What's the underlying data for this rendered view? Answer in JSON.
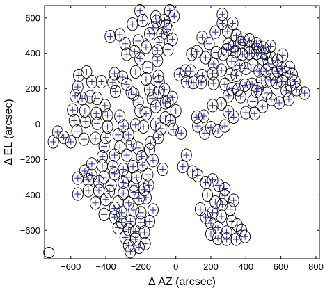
{
  "chart_data": {
    "type": "scatter",
    "title": "",
    "xlabel": "Δ AZ (arcsec)",
    "ylabel": "Δ EL (arcsec)",
    "xlim": [
      -750,
      820
    ],
    "ylim": [
      -760,
      670
    ],
    "xticks": [
      -600,
      -400,
      -200,
      0,
      200,
      400,
      600,
      800
    ],
    "yticks": [
      -600,
      -400,
      -200,
      0,
      200,
      400,
      600
    ],
    "xtick_labels": [
      "−600",
      "−400",
      "−200",
      "0",
      "200",
      "400",
      "600",
      "800"
    ],
    "ytick_labels": [
      "−600",
      "−400",
      "−200",
      "0",
      "200",
      "400",
      "600"
    ],
    "grid": false,
    "beam_diameter": 60,
    "beam_reference": [
      -725,
      -725
    ],
    "marker": "plus",
    "colors": {
      "marker": "#2222cc",
      "outline": "#000000",
      "axes": "#000000",
      "background": "#ffffff"
    },
    "points": [
      [
        -205,
        640
      ],
      [
        -115,
        605
      ],
      [
        -35,
        640
      ],
      [
        -375,
        495
      ],
      [
        -320,
        505
      ],
      [
        -248,
        565
      ],
      [
        -190,
        585
      ],
      [
        -110,
        580
      ],
      [
        -130,
        545
      ],
      [
        -65,
        585
      ],
      [
        -10,
        610
      ],
      [
        -55,
        555
      ],
      [
        -290,
        455
      ],
      [
        -215,
        470
      ],
      [
        -150,
        510
      ],
      [
        -80,
        510
      ],
      [
        -45,
        535
      ],
      [
        -235,
        410
      ],
      [
        -170,
        435
      ],
      [
        -95,
        460
      ],
      [
        -20,
        480
      ],
      [
        -350,
        285
      ],
      [
        -280,
        395
      ],
      [
        -205,
        370
      ],
      [
        -105,
        415
      ],
      [
        -45,
        420
      ],
      [
        -510,
        295
      ],
      [
        -555,
        275
      ],
      [
        -425,
        240
      ],
      [
        -480,
        240
      ],
      [
        -560,
        210
      ],
      [
        -360,
        235
      ],
      [
        -305,
        265
      ],
      [
        -230,
        295
      ],
      [
        -160,
        320
      ],
      [
        -105,
        360
      ],
      [
        -280,
        225
      ],
      [
        -240,
        170
      ],
      [
        -170,
        255
      ],
      [
        -100,
        270
      ],
      [
        -575,
        160
      ],
      [
        -535,
        145
      ],
      [
        -490,
        155
      ],
      [
        -450,
        145
      ],
      [
        -405,
        105
      ],
      [
        -345,
        185
      ],
      [
        -255,
        180
      ],
      [
        -215,
        125
      ],
      [
        -150,
        195
      ],
      [
        -95,
        240
      ],
      [
        -590,
        80
      ],
      [
        -520,
        75
      ],
      [
        -455,
        60
      ],
      [
        -390,
        50
      ],
      [
        -320,
        45
      ],
      [
        -205,
        75
      ],
      [
        -135,
        145
      ],
      [
        -65,
        195
      ],
      [
        -580,
        20
      ],
      [
        -515,
        15
      ],
      [
        -450,
        5
      ],
      [
        -390,
        -15
      ],
      [
        -300,
        -10
      ],
      [
        -230,
        -5
      ],
      [
        -170,
        60
      ],
      [
        -115,
        100
      ],
      [
        -45,
        130
      ],
      [
        -675,
        -45
      ],
      [
        -640,
        -75
      ],
      [
        -600,
        -100
      ],
      [
        -525,
        -85
      ],
      [
        -460,
        -80
      ],
      [
        -400,
        -75
      ],
      [
        -330,
        -60
      ],
      [
        -270,
        -60
      ],
      [
        -185,
        -15
      ],
      [
        -115,
        0
      ],
      [
        -60,
        35
      ],
      [
        -700,
        -100
      ],
      [
        -565,
        -40
      ],
      [
        -410,
        -125
      ],
      [
        -320,
        -130
      ],
      [
        -255,
        -115
      ],
      [
        -215,
        -135
      ],
      [
        -145,
        -105
      ],
      [
        -85,
        -25
      ],
      [
        -30,
        20
      ],
      [
        -15,
        -30
      ],
      [
        30,
        -50
      ],
      [
        0,
        75
      ],
      [
        -420,
        -185
      ],
      [
        -350,
        -175
      ],
      [
        -280,
        -175
      ],
      [
        -195,
        -185
      ],
      [
        -150,
        -145
      ],
      [
        -100,
        -75
      ],
      [
        -480,
        -225
      ],
      [
        -420,
        -235
      ],
      [
        -360,
        -240
      ],
      [
        -300,
        -255
      ],
      [
        -245,
        -240
      ],
      [
        -190,
        -230
      ],
      [
        -130,
        -205
      ],
      [
        -75,
        -255
      ],
      [
        -520,
        -265
      ],
      [
        -480,
        -290
      ],
      [
        -410,
        -300
      ],
      [
        -350,
        -280
      ],
      [
        -280,
        -300
      ],
      [
        -225,
        -300
      ],
      [
        -160,
        -285
      ],
      [
        -560,
        -305
      ],
      [
        -500,
        -315
      ],
      [
        -440,
        -325
      ],
      [
        -370,
        -345
      ],
      [
        -300,
        -330
      ],
      [
        -240,
        -345
      ],
      [
        -155,
        -345
      ],
      [
        -500,
        -375
      ],
      [
        -440,
        -375
      ],
      [
        -380,
        -380
      ],
      [
        -300,
        -390
      ],
      [
        -240,
        -385
      ],
      [
        -180,
        -370
      ],
      [
        -560,
        -395
      ],
      [
        -400,
        -425
      ],
      [
        -330,
        -440
      ],
      [
        -270,
        -445
      ],
      [
        -210,
        -420
      ],
      [
        -170,
        -415
      ],
      [
        -460,
        -445
      ],
      [
        -350,
        -475
      ],
      [
        -310,
        -500
      ],
      [
        -240,
        -485
      ],
      [
        -200,
        -500
      ],
      [
        -130,
        -485
      ],
      [
        -410,
        -510
      ],
      [
        -350,
        -525
      ],
      [
        -310,
        -555
      ],
      [
        -260,
        -550
      ],
      [
        -200,
        -555
      ],
      [
        -150,
        -550
      ],
      [
        -330,
        -585
      ],
      [
        -270,
        -595
      ],
      [
        -230,
        -605
      ],
      [
        -180,
        -610
      ],
      [
        -290,
        -640
      ],
      [
        -230,
        -650
      ],
      [
        -175,
        -675
      ],
      [
        -270,
        -685
      ],
      [
        -210,
        -695
      ],
      [
        -260,
        -720
      ],
      [
        120,
        410
      ],
      [
        170,
        375
      ],
      [
        215,
        340
      ],
      [
        260,
        305
      ],
      [
        310,
        280
      ],
      [
        345,
        275
      ],
      [
        210,
        285
      ],
      [
        150,
        275
      ],
      [
        100,
        235
      ],
      [
        145,
        235
      ],
      [
        215,
        230
      ],
      [
        280,
        225
      ],
      [
        320,
        200
      ],
      [
        370,
        155
      ],
      [
        440,
        130
      ],
      [
        470,
        200
      ],
      [
        520,
        175
      ],
      [
        545,
        140
      ],
      [
        540,
        250
      ],
      [
        575,
        235
      ],
      [
        610,
        240
      ],
      [
        630,
        190
      ],
      [
        655,
        220
      ],
      [
        690,
        195
      ],
      [
        735,
        175
      ],
      [
        645,
        140
      ],
      [
        590,
        120
      ],
      [
        495,
        100
      ],
      [
        450,
        60
      ],
      [
        400,
        65
      ],
      [
        330,
        40
      ],
      [
        300,
        70
      ],
      [
        280,
        -10
      ],
      [
        240,
        -40
      ],
      [
        200,
        -20
      ],
      [
        165,
        -50
      ],
      [
        125,
        -10
      ],
      [
        120,
        40
      ],
      [
        160,
        45
      ],
      [
        210,
        105
      ],
      [
        260,
        115
      ],
      [
        300,
        160
      ],
      [
        355,
        195
      ],
      [
        395,
        220
      ],
      [
        435,
        225
      ],
      [
        460,
        185
      ],
      [
        490,
        245
      ],
      [
        560,
        285
      ],
      [
        515,
        300
      ],
      [
        475,
        300
      ],
      [
        440,
        335
      ],
      [
        400,
        315
      ],
      [
        365,
        330
      ],
      [
        320,
        355
      ],
      [
        270,
        395
      ],
      [
        230,
        405
      ],
      [
        290,
        420
      ],
      [
        330,
        440
      ],
      [
        370,
        460
      ],
      [
        420,
        435
      ],
      [
        465,
        440
      ],
      [
        510,
        400
      ],
      [
        545,
        375
      ],
      [
        580,
        360
      ],
      [
        610,
        390
      ],
      [
        580,
        300
      ],
      [
        625,
        290
      ],
      [
        665,
        280
      ],
      [
        680,
        240
      ],
      [
        650,
        320
      ],
      [
        605,
        315
      ],
      [
        530,
        340
      ],
      [
        495,
        370
      ],
      [
        460,
        400
      ],
      [
        420,
        400
      ],
      [
        380,
        395
      ],
      [
        340,
        410
      ],
      [
        300,
        450
      ],
      [
        345,
        500
      ],
      [
        385,
        480
      ],
      [
        420,
        475
      ],
      [
        460,
        455
      ],
      [
        500,
        430
      ],
      [
        540,
        440
      ],
      [
        295,
        525
      ],
      [
        325,
        570
      ],
      [
        265,
        570
      ],
      [
        265,
        620
      ],
      [
        225,
        520
      ],
      [
        190,
        455
      ],
      [
        150,
        490
      ],
      [
        90,
        395
      ],
      [
        85,
        300
      ],
      [
        55,
        300
      ],
      [
        20,
        280
      ],
      [
        60,
        240
      ],
      [
        -100,
        180
      ],
      [
        -60,
        120
      ],
      [
        -20,
        150
      ],
      [
        60,
        -175
      ],
      [
        40,
        -240
      ],
      [
        95,
        -270
      ],
      [
        125,
        -290
      ],
      [
        170,
        -330
      ],
      [
        210,
        -315
      ],
      [
        245,
        -345
      ],
      [
        280,
        -365
      ],
      [
        280,
        -405
      ],
      [
        330,
        -430
      ],
      [
        180,
        -400
      ],
      [
        225,
        -440
      ],
      [
        265,
        -455
      ],
      [
        310,
        -480
      ],
      [
        210,
        -500
      ],
      [
        260,
        -520
      ],
      [
        320,
        -550
      ],
      [
        140,
        -480
      ],
      [
        170,
        -525
      ],
      [
        200,
        -560
      ],
      [
        240,
        -585
      ],
      [
        290,
        -610
      ],
      [
        350,
        -570
      ],
      [
        375,
        -600
      ],
      [
        395,
        -635
      ],
      [
        345,
        -650
      ],
      [
        290,
        -650
      ],
      [
        240,
        -645
      ],
      [
        200,
        -620
      ]
    ]
  }
}
